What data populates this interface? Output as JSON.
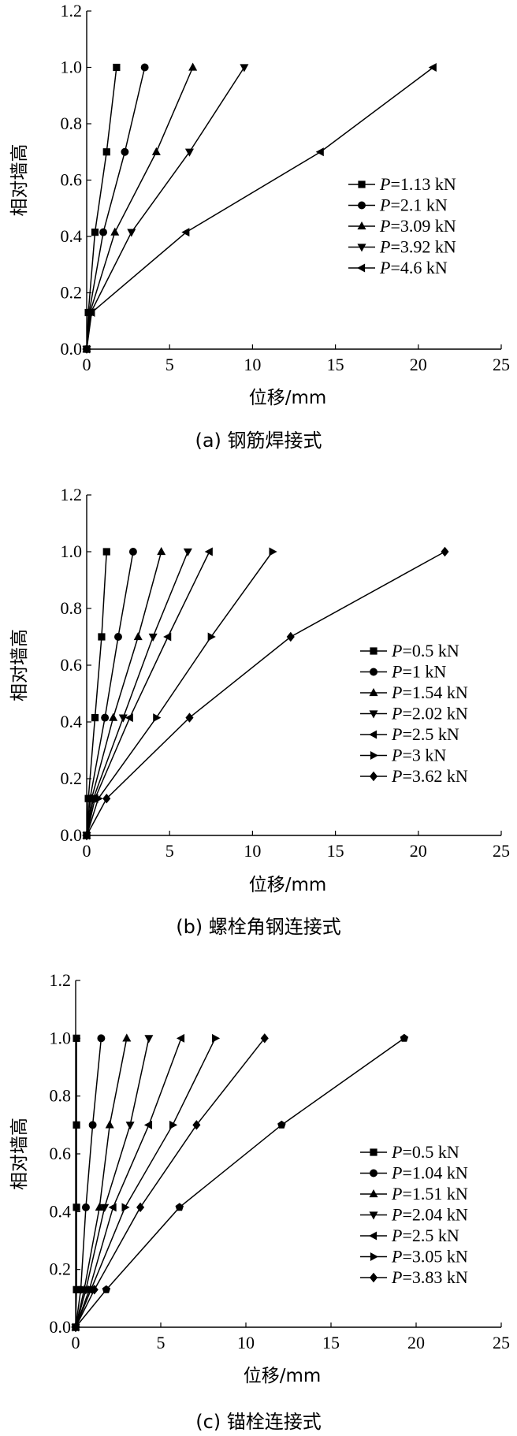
{
  "chart_data": [
    {
      "type": "line",
      "caption": "(a) 钢筋焊接式",
      "xlabel": "位移/mm",
      "ylabel": "相对墙高",
      "xlim": [
        0,
        25
      ],
      "ylim": [
        0,
        1.2
      ],
      "xticks": [
        "0",
        "5",
        "10",
        "15",
        "20",
        "25"
      ],
      "yticks": [
        "0.0",
        "0.2",
        "0.4",
        "0.6",
        "0.8",
        "1.0",
        "1.2"
      ],
      "legend_position": "right-middle",
      "series": [
        {
          "name": "P=1.13 kN",
          "label_prefix": "P",
          "label_value": "=1.13 kN",
          "marker": "square",
          "points": [
            [
              0,
              0
            ],
            [
              0.1,
              0.13
            ],
            [
              0.5,
              0.415
            ],
            [
              1.2,
              0.7
            ],
            [
              1.8,
              1.0
            ]
          ]
        },
        {
          "name": "P=2.1 kN",
          "label_prefix": "P",
          "label_value": "=2.1 kN",
          "marker": "circle",
          "points": [
            [
              0,
              0
            ],
            [
              0.15,
              0.13
            ],
            [
              1.0,
              0.415
            ],
            [
              2.3,
              0.7
            ],
            [
              3.5,
              1.0
            ]
          ]
        },
        {
          "name": "P=3.09 kN",
          "label_prefix": "P",
          "label_value": "=3.09 kN",
          "marker": "triangle-up",
          "points": [
            [
              0,
              0
            ],
            [
              0.2,
              0.13
            ],
            [
              1.7,
              0.415
            ],
            [
              4.2,
              0.7
            ],
            [
              6.4,
              1.0
            ]
          ]
        },
        {
          "name": "P=3.92 kN",
          "label_prefix": "P",
          "label_value": "=3.92 kN",
          "marker": "triangle-down",
          "points": [
            [
              0,
              0
            ],
            [
              0.25,
              0.13
            ],
            [
              2.7,
              0.415
            ],
            [
              6.2,
              0.7
            ],
            [
              9.5,
              1.0
            ]
          ]
        },
        {
          "name": "P=4.6 kN",
          "label_prefix": "P",
          "label_value": "=4.6 kN",
          "marker": "triangle-left",
          "points": [
            [
              0,
              0
            ],
            [
              0.3,
              0.13
            ],
            [
              6.0,
              0.415
            ],
            [
              14.1,
              0.7
            ],
            [
              20.9,
              1.0
            ]
          ]
        }
      ]
    },
    {
      "type": "line",
      "caption": "(b) 螺栓角钢连接式",
      "xlabel": "位移/mm",
      "ylabel": "相对墙高",
      "xlim": [
        0,
        25
      ],
      "ylim": [
        0,
        1.2
      ],
      "xticks": [
        "0",
        "5",
        "10",
        "15",
        "20",
        "25"
      ],
      "yticks": [
        "0.0",
        "0.2",
        "0.4",
        "0.6",
        "0.8",
        "1.0",
        "1.2"
      ],
      "legend_position": "right-middle",
      "series": [
        {
          "name": "P=0.5 kN",
          "label_prefix": "P",
          "label_value": "=0.5 kN",
          "marker": "square",
          "points": [
            [
              0,
              0
            ],
            [
              0.1,
              0.13
            ],
            [
              0.5,
              0.415
            ],
            [
              0.9,
              0.7
            ],
            [
              1.2,
              1.0
            ]
          ]
        },
        {
          "name": "P=1 kN",
          "label_prefix": "P",
          "label_value": "=1 kN",
          "marker": "circle",
          "points": [
            [
              0,
              0
            ],
            [
              0.2,
              0.13
            ],
            [
              1.1,
              0.415
            ],
            [
              1.9,
              0.7
            ],
            [
              2.8,
              1.0
            ]
          ]
        },
        {
          "name": "P=1.54 kN",
          "label_prefix": "P",
          "label_value": "=1.54 kN",
          "marker": "triangle-up",
          "points": [
            [
              0,
              0
            ],
            [
              0.3,
              0.13
            ],
            [
              1.6,
              0.415
            ],
            [
              3.1,
              0.7
            ],
            [
              4.5,
              1.0
            ]
          ]
        },
        {
          "name": "P=2.02 kN",
          "label_prefix": "P",
          "label_value": "=2.02 kN",
          "marker": "triangle-down",
          "points": [
            [
              0,
              0
            ],
            [
              0.4,
              0.13
            ],
            [
              2.2,
              0.415
            ],
            [
              4.0,
              0.7
            ],
            [
              6.1,
              1.0
            ]
          ]
        },
        {
          "name": "P=2.5 kN",
          "label_prefix": "P",
          "label_value": "=2.5 kN",
          "marker": "triangle-left",
          "points": [
            [
              0,
              0
            ],
            [
              0.5,
              0.13
            ],
            [
              2.6,
              0.415
            ],
            [
              4.9,
              0.7
            ],
            [
              7.4,
              1.0
            ]
          ]
        },
        {
          "name": "P=3 kN",
          "label_prefix": "P",
          "label_value": "=3 kN",
          "marker": "triangle-right",
          "points": [
            [
              0,
              0
            ],
            [
              0.7,
              0.13
            ],
            [
              4.2,
              0.415
            ],
            [
              7.5,
              0.7
            ],
            [
              11.2,
              1.0
            ]
          ]
        },
        {
          "name": "P=3.62 kN",
          "label_prefix": "P",
          "label_value": "=3.62 kN",
          "marker": "diamond",
          "points": [
            [
              0,
              0
            ],
            [
              1.2,
              0.13
            ],
            [
              6.2,
              0.415
            ],
            [
              12.3,
              0.7
            ],
            [
              21.6,
              1.0
            ]
          ]
        }
      ]
    },
    {
      "type": "line",
      "caption": "(c) 锚栓连接式",
      "xlabel": "位移/mm",
      "ylabel": "相对墙高",
      "xlim": [
        0,
        25
      ],
      "ylim": [
        0,
        1.2
      ],
      "xticks": [
        "0",
        "5",
        "10",
        "15",
        "20",
        "25"
      ],
      "yticks": [
        "0.0",
        "0.2",
        "0.4",
        "0.6",
        "0.8",
        "1.0",
        "1.2"
      ],
      "legend_position": "right-middle",
      "series": [
        {
          "name": "P=0.5 kN",
          "label_prefix": "P",
          "label_value": "=0.5 kN",
          "marker": "square",
          "points": [
            [
              0,
              0
            ],
            [
              0.05,
              0.13
            ],
            [
              0.05,
              0.415
            ],
            [
              0.05,
              0.7
            ],
            [
              0.05,
              1.0
            ]
          ]
        },
        {
          "name": "P=1.04 kN",
          "label_prefix": "P",
          "label_value": "=1.04 kN",
          "marker": "circle",
          "points": [
            [
              0,
              0
            ],
            [
              0.3,
              0.13
            ],
            [
              0.6,
              0.415
            ],
            [
              1.0,
              0.7
            ],
            [
              1.5,
              1.0
            ]
          ]
        },
        {
          "name": "P=1.51 kN",
          "label_prefix": "P",
          "label_value": "=1.51 kN",
          "marker": "triangle-up",
          "points": [
            [
              0,
              0
            ],
            [
              0.5,
              0.13
            ],
            [
              1.4,
              0.415
            ],
            [
              2.0,
              0.7
            ],
            [
              3.0,
              1.0
            ]
          ]
        },
        {
          "name": "P=2.04 kN",
          "label_prefix": "P",
          "label_value": "=2.04 kN",
          "marker": "triangle-down",
          "points": [
            [
              0,
              0
            ],
            [
              0.6,
              0.13
            ],
            [
              1.7,
              0.415
            ],
            [
              3.2,
              0.7
            ],
            [
              4.3,
              1.0
            ]
          ]
        },
        {
          "name": "P=2.5 kN",
          "label_prefix": "P",
          "label_value": "=2.5 kN",
          "marker": "triangle-left",
          "points": [
            [
              0,
              0
            ],
            [
              0.8,
              0.13
            ],
            [
              2.2,
              0.415
            ],
            [
              4.3,
              0.7
            ],
            [
              6.2,
              1.0
            ]
          ]
        },
        {
          "name": "P=3.05 kN",
          "label_prefix": "P",
          "label_value": "=3.05 kN",
          "marker": "triangle-right",
          "points": [
            [
              0,
              0
            ],
            [
              0.9,
              0.13
            ],
            [
              2.9,
              0.415
            ],
            [
              5.7,
              0.7
            ],
            [
              8.2,
              1.0
            ]
          ]
        },
        {
          "name": "P=3.83 kN",
          "label_prefix": "P",
          "label_value": "=3.83 kN",
          "marker": "diamond",
          "points": [
            [
              0,
              0
            ],
            [
              1.1,
              0.13
            ],
            [
              3.8,
              0.415
            ],
            [
              7.1,
              0.7
            ],
            [
              11.1,
              1.0
            ]
          ]
        },
        {
          "name": "",
          "marker": "pentagon",
          "points": [
            [
              0,
              0
            ],
            [
              1.8,
              0.13
            ],
            [
              6.1,
              0.415
            ],
            [
              12.1,
              0.7
            ],
            [
              19.3,
              1.0
            ]
          ]
        }
      ]
    }
  ]
}
